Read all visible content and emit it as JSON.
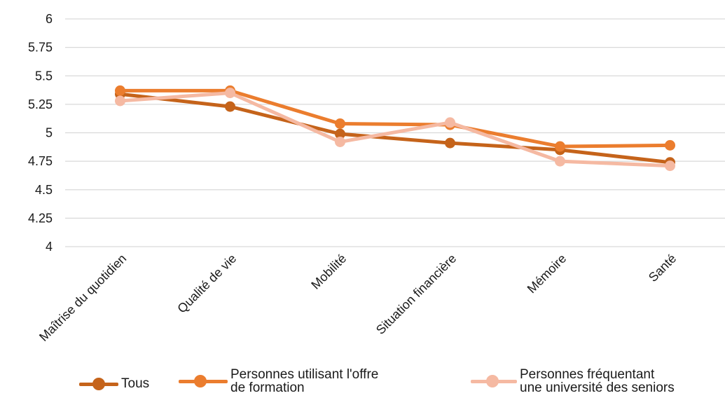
{
  "chart_data": {
    "type": "line",
    "title": "",
    "xlabel": "",
    "ylabel": "",
    "ylim": [
      4,
      6
    ],
    "yticks": [
      "4",
      "4.25",
      "4.5",
      "4.75",
      "5",
      "5.25",
      "5.5",
      "5.75",
      "6"
    ],
    "grid": true,
    "legend_position": "bottom",
    "categories": [
      "Maîtrise du quotidien",
      "Qualité de vie",
      "Mobilité",
      "Situation financière",
      "Mémoire",
      "Santé"
    ],
    "series": [
      {
        "name": "Tous",
        "color": "#C5631A",
        "values": [
          5.34,
          5.23,
          4.99,
          4.91,
          4.85,
          4.74
        ]
      },
      {
        "name": "Personnes utilisant l'offre\nde formation",
        "color": "#EB7D2E",
        "values": [
          5.37,
          5.37,
          5.08,
          5.07,
          4.88,
          4.89
        ]
      },
      {
        "name": "Personnes fréquentant\nune université des seniors",
        "color": "#F5B9A2",
        "values": [
          5.28,
          5.35,
          4.92,
          5.09,
          4.75,
          4.71
        ]
      }
    ]
  }
}
